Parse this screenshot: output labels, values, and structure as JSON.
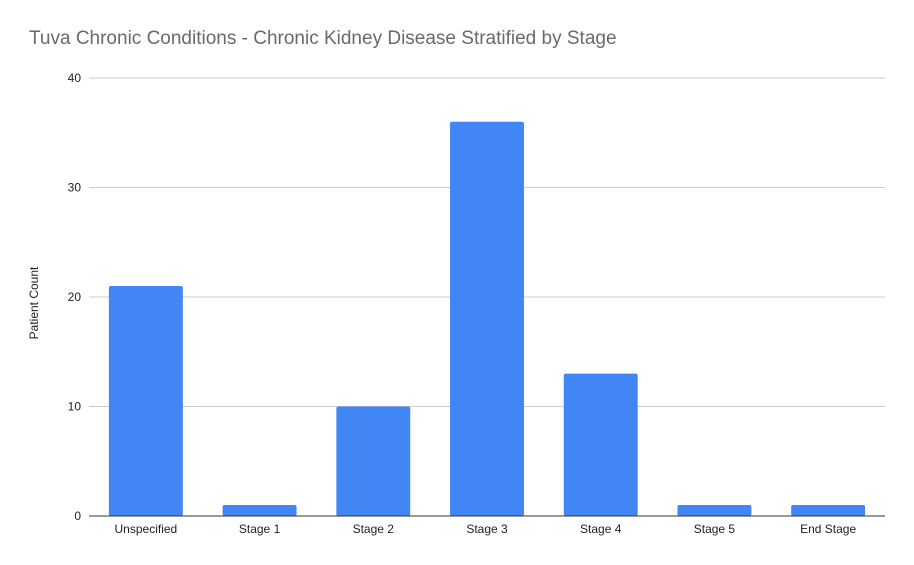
{
  "chart_data": {
    "type": "bar",
    "title": "Tuva Chronic Conditions - Chronic Kidney Disease Stratified by Stage",
    "xlabel": "",
    "ylabel": "Patient Count",
    "categories": [
      "Unspecified",
      "Stage 1",
      "Stage 2",
      "Stage 3",
      "Stage 4",
      "Stage 5",
      "End Stage"
    ],
    "series": [
      {
        "values": [
          21,
          1,
          10,
          36,
          13,
          1,
          1
        ]
      }
    ],
    "ylim": [
      0,
      40
    ],
    "yticks": [
      0,
      10,
      20,
      30,
      40
    ],
    "grid": true,
    "legend": "none",
    "colors": {
      "bar": "#4285f4",
      "grid": "#cccccc",
      "axis": "#333333"
    }
  }
}
